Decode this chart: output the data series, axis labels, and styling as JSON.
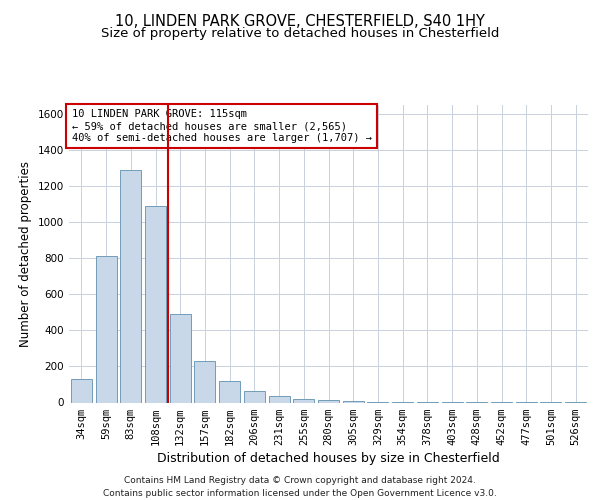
{
  "title1": "10, LINDEN PARK GROVE, CHESTERFIELD, S40 1HY",
  "title2": "Size of property relative to detached houses in Chesterfield",
  "xlabel": "Distribution of detached houses by size in Chesterfield",
  "ylabel": "Number of detached properties",
  "categories": [
    "34sqm",
    "59sqm",
    "83sqm",
    "108sqm",
    "132sqm",
    "157sqm",
    "182sqm",
    "206sqm",
    "231sqm",
    "255sqm",
    "280sqm",
    "305sqm",
    "329sqm",
    "354sqm",
    "378sqm",
    "403sqm",
    "428sqm",
    "452sqm",
    "477sqm",
    "501sqm",
    "526sqm"
  ],
  "values": [
    130,
    810,
    1290,
    1090,
    490,
    230,
    120,
    65,
    35,
    22,
    12,
    8,
    5,
    5,
    5,
    5,
    5,
    5,
    5,
    5,
    5
  ],
  "bar_color": "#c8d8e8",
  "bar_edge_color": "#6090b0",
  "grid_color": "#c8d0dc",
  "vline_x": 3.5,
  "vline_color": "#cc0000",
  "annotation_text": "10 LINDEN PARK GROVE: 115sqm\n← 59% of detached houses are smaller (2,565)\n40% of semi-detached houses are larger (1,707) →",
  "annotation_box_color": "#ffffff",
  "annotation_box_edge": "#cc0000",
  "footnote1": "Contains HM Land Registry data © Crown copyright and database right 2024.",
  "footnote2": "Contains public sector information licensed under the Open Government Licence v3.0.",
  "ylim": [
    0,
    1650
  ],
  "yticks": [
    0,
    200,
    400,
    600,
    800,
    1000,
    1200,
    1400,
    1600
  ],
  "bg_color": "#ffffff",
  "title1_fontsize": 10.5,
  "title2_fontsize": 9.5,
  "ylabel_fontsize": 8.5,
  "xlabel_fontsize": 9,
  "tick_fontsize": 7.5,
  "annot_fontsize": 7.5,
  "footnote_fontsize": 6.5
}
